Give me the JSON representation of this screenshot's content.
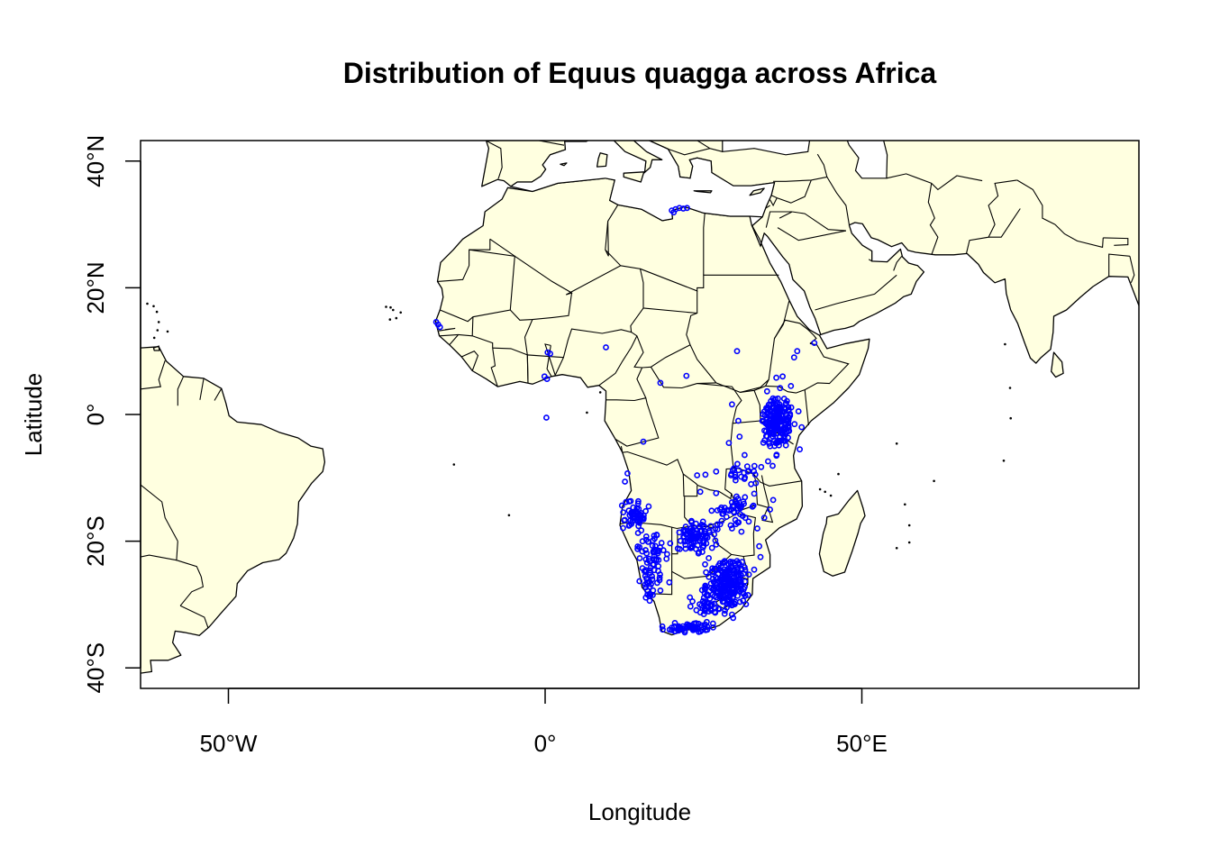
{
  "title": "Distribution of Equus quagga across Africa",
  "xlabel": "Longitude",
  "ylabel": "Latitude",
  "x_ticks": [
    {
      "value": -50,
      "label": "50°W"
    },
    {
      "value": 0,
      "label": "0°"
    },
    {
      "value": 50,
      "label": "50°E"
    }
  ],
  "y_ticks": [
    {
      "value": 40,
      "label": "40°N"
    },
    {
      "value": 20,
      "label": "20°N"
    },
    {
      "value": 0,
      "label": "0°"
    },
    {
      "value": -20,
      "label": "20°S"
    },
    {
      "value": -40,
      "label": "40°S"
    }
  ],
  "colors": {
    "land": "#ffffe0",
    "points": "#0000ff",
    "border": "#000000"
  },
  "chart_data": {
    "type": "scatter",
    "title": "Distribution of Equus quagga across Africa",
    "xlabel": "Longitude",
    "ylabel": "Latitude",
    "xlim": [
      -64,
      93
    ],
    "ylim": [
      -43,
      43
    ],
    "marker": "open-circle",
    "marker_color": "#0000ff",
    "series": [
      {
        "clusters": [
          {
            "lon": [
              33.8,
              39.5
            ],
            "lat": [
              -5.5,
              3.0
            ],
            "n": 160
          },
          {
            "lon": [
              34.5,
              38.8
            ],
            "lat": [
              -9.0,
              6.0
            ],
            "n": 40
          },
          {
            "lon": [
              12.0,
              16.5
            ],
            "lat": [
              -19.0,
              -13.0
            ],
            "n": 55
          },
          {
            "lon": [
              14.0,
              20.0
            ],
            "lat": [
              -25.0,
              -18.0
            ],
            "n": 40
          },
          {
            "lon": [
              14.5,
              18.5
            ],
            "lat": [
              -29.0,
              -22.0
            ],
            "n": 35
          },
          {
            "lon": [
              20.0,
              28.0
            ],
            "lat": [
              -22.0,
              -16.5
            ],
            "n": 90
          },
          {
            "lon": [
              25.0,
              32.5
            ],
            "lat": [
              -30.5,
              -22.5
            ],
            "n": 200
          },
          {
            "lon": [
              22.0,
              30.5
            ],
            "lat": [
              -33.0,
              -27.0
            ],
            "n": 60
          },
          {
            "lon": [
              18.0,
              27.0
            ],
            "lat": [
              -34.8,
              -32.5
            ],
            "n": 55
          },
          {
            "lon": [
              26.0,
              33.5
            ],
            "lat": [
              -18.0,
              -12.0
            ],
            "n": 45
          },
          {
            "lon": [
              28.0,
              35.0
            ],
            "lat": [
              -12.0,
              -6.0
            ],
            "n": 20
          }
        ],
        "points": [
          [
            -17.2,
            14.6
          ],
          [
            -16.9,
            14.2
          ],
          [
            -16.6,
            13.8
          ],
          [
            20.0,
            32.2
          ],
          [
            20.6,
            32.4
          ],
          [
            21.2,
            32.6
          ],
          [
            21.8,
            32.5
          ],
          [
            22.4,
            32.6
          ],
          [
            20.3,
            31.9
          ],
          [
            0.8,
            9.6
          ],
          [
            0.4,
            9.8
          ],
          [
            -0.1,
            6.0
          ],
          [
            0.3,
            5.6
          ],
          [
            9.6,
            10.6
          ],
          [
            22.3,
            6.1
          ],
          [
            18.2,
            5.0
          ],
          [
            30.3,
            10.0
          ],
          [
            39.8,
            10.0
          ],
          [
            39.3,
            9.0
          ],
          [
            42.5,
            11.3
          ],
          [
            15.5,
            -4.3
          ],
          [
            0.2,
            -0.5
          ],
          [
            13.0,
            -9.3
          ],
          [
            12.6,
            -10.6
          ],
          [
            24.0,
            -9.6
          ],
          [
            24.5,
            -12.2
          ],
          [
            25.3,
            -9.5
          ],
          [
            27.0,
            -9.0
          ],
          [
            32.0,
            -9.0
          ],
          [
            33.0,
            -12.5
          ],
          [
            36.0,
            -13.5
          ],
          [
            35.5,
            -15.0
          ],
          [
            34.6,
            -16.3
          ],
          [
            33.5,
            -18.0
          ],
          [
            33.8,
            -20.8
          ],
          [
            34.0,
            -22.5
          ],
          [
            33.0,
            -24.5
          ],
          [
            19.6,
            -26.5
          ],
          [
            18.2,
            -27.8
          ],
          [
            17.0,
            -28.5
          ],
          [
            16.5,
            -29.4
          ],
          [
            26.5,
            -33.0
          ],
          [
            29.5,
            -31.6
          ],
          [
            15.9,
            -28.9
          ],
          [
            30.5,
            -1.0
          ],
          [
            29.5,
            1.6
          ],
          [
            29.0,
            -4.5
          ],
          [
            31.5,
            -6.4
          ],
          [
            30.7,
            -3.5
          ],
          [
            30.0,
            -9.5
          ],
          [
            29.5,
            -18.0
          ],
          [
            31.0,
            -18.5
          ],
          [
            16.6,
            -25.0
          ],
          [
            18.0,
            -21.5
          ],
          [
            40.2,
            -5.5
          ],
          [
            40.5,
            -2.0
          ],
          [
            40.0,
            0.5
          ],
          [
            38.8,
            4.5
          ],
          [
            37.5,
            6.0
          ],
          [
            36.5,
            5.8
          ]
        ]
      }
    ]
  }
}
